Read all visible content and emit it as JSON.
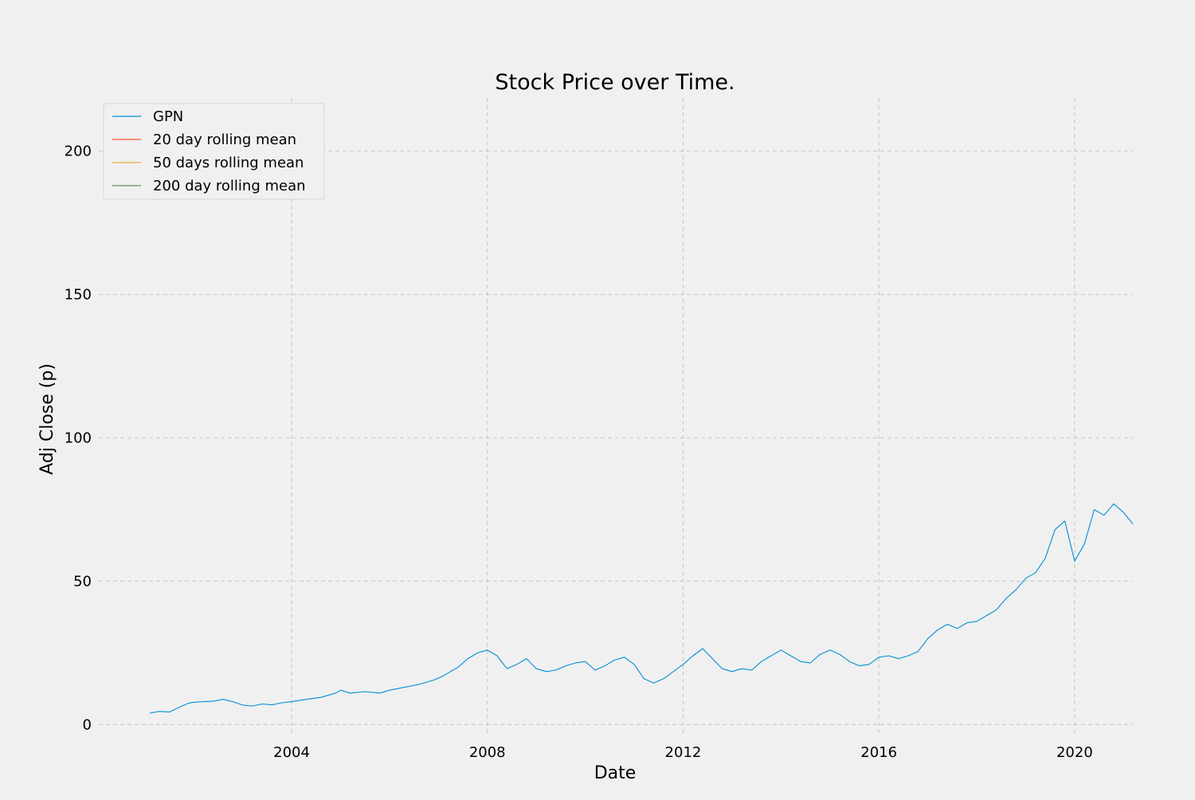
{
  "chart_data": {
    "type": "line",
    "title": "Stock Price over Time.",
    "xlabel": "Date",
    "ylabel": "Adj Close (p)",
    "grid": true,
    "legend_position": "top-left",
    "xlim": [
      2000.06,
      2021.19
    ],
    "ylim": [
      -3.5,
      218.5
    ],
    "x_ticks": [
      2004,
      2008,
      2012,
      2016,
      2020
    ],
    "y_ticks": [
      0,
      50,
      100,
      150,
      200
    ],
    "series": [
      {
        "name": "GPN",
        "color": "#008fd5",
        "points": [
          [
            2001.1,
            4.0
          ],
          [
            2001.3,
            4.6
          ],
          [
            2001.5,
            4.4
          ],
          [
            2001.7,
            6.0
          ],
          [
            2001.9,
            7.5
          ],
          [
            2002.0,
            7.8
          ],
          [
            2002.2,
            8.0
          ],
          [
            2002.4,
            8.2
          ],
          [
            2002.6,
            8.8
          ],
          [
            2002.8,
            8.0
          ],
          [
            2003.0,
            6.8
          ],
          [
            2003.2,
            6.5
          ],
          [
            2003.4,
            7.2
          ],
          [
            2003.6,
            6.9
          ],
          [
            2003.8,
            7.6
          ],
          [
            2004.0,
            8.0
          ],
          [
            2004.3,
            8.8
          ],
          [
            2004.6,
            9.5
          ],
          [
            2004.9,
            11.0
          ],
          [
            2005.0,
            12.0
          ],
          [
            2005.2,
            11.0
          ],
          [
            2005.5,
            11.5
          ],
          [
            2005.8,
            11.0
          ],
          [
            2006.0,
            12.0
          ],
          [
            2006.3,
            13.0
          ],
          [
            2006.6,
            14.0
          ],
          [
            2006.9,
            15.5
          ],
          [
            2007.1,
            17.0
          ],
          [
            2007.4,
            20.0
          ],
          [
            2007.6,
            23.0
          ],
          [
            2007.8,
            25.0
          ],
          [
            2008.0,
            26.0
          ],
          [
            2008.2,
            24.0
          ],
          [
            2008.4,
            19.5
          ],
          [
            2008.6,
            21.0
          ],
          [
            2008.8,
            23.0
          ],
          [
            2009.0,
            19.5
          ],
          [
            2009.2,
            18.5
          ],
          [
            2009.4,
            19.0
          ],
          [
            2009.6,
            20.5
          ],
          [
            2009.8,
            21.5
          ],
          [
            2010.0,
            22.0
          ],
          [
            2010.2,
            19.0
          ],
          [
            2010.4,
            20.5
          ],
          [
            2010.6,
            22.5
          ],
          [
            2010.8,
            23.5
          ],
          [
            2011.0,
            21.0
          ],
          [
            2011.2,
            16.0
          ],
          [
            2011.4,
            14.5
          ],
          [
            2011.6,
            16.0
          ],
          [
            2011.8,
            18.5
          ],
          [
            2012.0,
            21.0
          ],
          [
            2012.2,
            24.0
          ],
          [
            2012.4,
            26.5
          ],
          [
            2012.6,
            23.0
          ],
          [
            2012.8,
            19.5
          ],
          [
            2013.0,
            18.5
          ],
          [
            2013.2,
            19.5
          ],
          [
            2013.4,
            19.0
          ],
          [
            2013.6,
            22.0
          ],
          [
            2013.8,
            24.0
          ],
          [
            2014.0,
            26.0
          ],
          [
            2014.2,
            24.0
          ],
          [
            2014.4,
            22.0
          ],
          [
            2014.6,
            21.5
          ],
          [
            2014.8,
            24.5
          ],
          [
            2015.0,
            26.0
          ],
          [
            2015.2,
            24.5
          ],
          [
            2015.4,
            22.0
          ],
          [
            2015.6,
            20.5
          ],
          [
            2015.8,
            21.0
          ],
          [
            2016.0,
            23.5
          ],
          [
            2016.2,
            24.0
          ],
          [
            2016.4,
            23.0
          ],
          [
            2016.6,
            24.0
          ],
          [
            2016.8,
            25.5
          ],
          [
            2017.0,
            30.0
          ],
          [
            2017.2,
            33.0
          ],
          [
            2017.4,
            35.0
          ],
          [
            2017.6,
            33.5
          ],
          [
            2017.8,
            35.5
          ],
          [
            2018.0,
            36.0
          ],
          [
            2018.2,
            38.0
          ],
          [
            2018.4,
            40.0
          ],
          [
            2018.6,
            44.0
          ],
          [
            2018.8,
            47.0
          ],
          [
            2019.0,
            51.0
          ],
          [
            2019.2,
            53.0
          ],
          [
            2019.4,
            58.0
          ],
          [
            2019.6,
            68.0
          ],
          [
            2019.8,
            71.0
          ],
          [
            2020.0,
            57.0
          ],
          [
            2020.2,
            63.0
          ],
          [
            2020.4,
            75.0
          ],
          [
            2020.6,
            73.0
          ],
          [
            2020.8,
            77.0
          ],
          [
            2021.0,
            74.0
          ],
          [
            2021.19,
            70.0
          ]
        ]
      },
      {
        "name": "20 day rolling mean",
        "color": "#fc4f30",
        "points": []
      },
      {
        "name": "50 days rolling mean",
        "color": "#e5ae38",
        "points": []
      },
      {
        "name": "200 day rolling mean",
        "color": "#6d904f",
        "points": []
      }
    ]
  }
}
